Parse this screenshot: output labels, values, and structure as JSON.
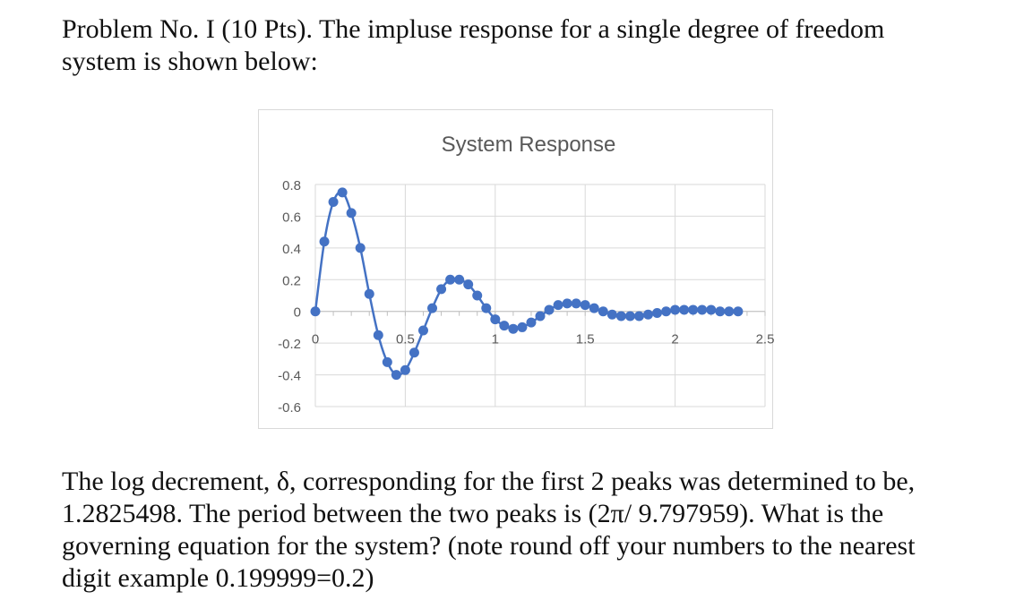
{
  "heading": {
    "line1": "Problem No. I (10 Pts). The impluse response for a single degree of freedom",
    "line2": "system is shown below:"
  },
  "question": {
    "line1": "The log decrement, δ, corresponding for the first 2 peaks was determined to be,",
    "line2": "1.2825498.  The period between the two peaks is (2π/ 9.797959).  What is the",
    "line3": "governing equation for the system?  (note round off your numbers to the nearest",
    "line4": "digit example 0.199999=0.2)"
  },
  "colors": {
    "series": "#4472c4",
    "gridline": "#d9d9d9",
    "tick_text": "#595959",
    "title_text": "#595959"
  },
  "chart_data": {
    "type": "scatter",
    "title": "System Response",
    "xlabel": "",
    "ylabel": "",
    "xlim": [
      0,
      2.5
    ],
    "ylim": [
      -0.6,
      0.8
    ],
    "x_ticks": [
      "0",
      "0.5",
      "1",
      "1.5",
      "2",
      "2.5"
    ],
    "y_ticks": [
      "0.8",
      "0.6",
      "0.4",
      "0.2",
      "0",
      "-0.2",
      "-0.4",
      "-0.6"
    ],
    "grid": true,
    "legend": "none",
    "series": [
      {
        "x": [
          0,
          0.05,
          0.1,
          0.15,
          0.2,
          0.25,
          0.3,
          0.35,
          0.4,
          0.45,
          0.5,
          0.55,
          0.6,
          0.65,
          0.7,
          0.75,
          0.8,
          0.85,
          0.9,
          0.95,
          1.0,
          1.05,
          1.1,
          1.15,
          1.2,
          1.25,
          1.3,
          1.35,
          1.4,
          1.45,
          1.5,
          1.55,
          1.6,
          1.65,
          1.7,
          1.75,
          1.8,
          1.85,
          1.9,
          1.95,
          2.0,
          2.05,
          2.1,
          2.15,
          2.2,
          2.25,
          2.3,
          2.35
        ],
        "y": [
          0.0,
          0.44,
          0.69,
          0.75,
          0.62,
          0.4,
          0.11,
          -0.15,
          -0.32,
          -0.4,
          -0.37,
          -0.26,
          -0.12,
          0.02,
          0.14,
          0.2,
          0.2,
          0.17,
          0.1,
          0.02,
          -0.05,
          -0.09,
          -0.11,
          -0.1,
          -0.07,
          -0.03,
          0.01,
          0.04,
          0.05,
          0.05,
          0.04,
          0.02,
          0.0,
          -0.02,
          -0.03,
          -0.03,
          -0.03,
          -0.02,
          -0.01,
          0.0,
          0.01,
          0.01,
          0.01,
          0.01,
          0.01,
          0.0,
          0.0,
          0.0
        ]
      }
    ]
  }
}
